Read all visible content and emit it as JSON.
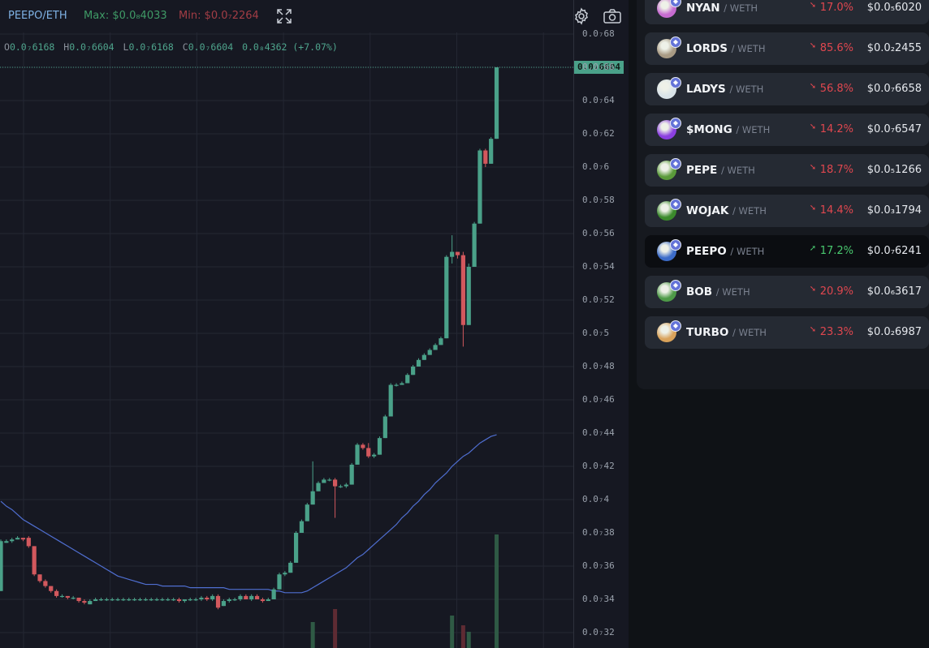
{
  "header": {
    "pair": "PEEPO/ETH",
    "max": "Max: $0.0₈4033",
    "min": "Min: $0.0₇2264"
  },
  "ohlc": {
    "open_key": "O",
    "open": "0.0₇6168",
    "high_key": "H",
    "high": "0.0₇6604",
    "low_key": "L",
    "low": "0.0₇6168",
    "close_key": "C",
    "close": "0.0₇6604",
    "change": "0.0₈4362 (+7.07%)"
  },
  "price_tag": "0.0₇6604",
  "colors": {
    "up": "#4aa189",
    "down": "#d2585d",
    "ma": "#4f6ed0",
    "badge": "#4aa189"
  },
  "chart_data": {
    "type": "candlestick",
    "y_unit": "ETH (scaled ×10⁻⁷)",
    "y_ticks": [
      "0.0₇68",
      "0.0₇66",
      "0.0₇64",
      "0.0₇62",
      "0.0₇6",
      "0.0₇58",
      "0.0₇56",
      "0.0₇54",
      "0.0₇52",
      "0.0₇5",
      "0.0₇48",
      "0.0₇46",
      "0.0₇44",
      "0.0₇42",
      "0.0₇4",
      "0.0₇38",
      "0.0₇36",
      "0.0₇34",
      "0.0₇32"
    ],
    "y_tick_values": [
      0.68,
      0.66,
      0.64,
      0.62,
      0.6,
      0.58,
      0.56,
      0.54,
      0.52,
      0.5,
      0.48,
      0.46,
      0.44,
      0.42,
      0.4,
      0.38,
      0.36,
      0.34,
      0.32
    ],
    "candles": [
      {
        "o": 0.345,
        "h": 0.376,
        "l": 0.345,
        "c": 0.375
      },
      {
        "o": 0.374,
        "h": 0.376,
        "l": 0.374,
        "c": 0.375
      },
      {
        "o": 0.375,
        "h": 0.377,
        "l": 0.374,
        "c": 0.376
      },
      {
        "o": 0.376,
        "h": 0.378,
        "l": 0.376,
        "c": 0.377
      },
      {
        "o": 0.377,
        "h": 0.377,
        "l": 0.375,
        "c": 0.376
      },
      {
        "o": 0.377,
        "h": 0.378,
        "l": 0.371,
        "c": 0.372
      },
      {
        "o": 0.372,
        "h": 0.372,
        "l": 0.354,
        "c": 0.355
      },
      {
        "o": 0.355,
        "h": 0.355,
        "l": 0.35,
        "c": 0.351
      },
      {
        "o": 0.351,
        "h": 0.352,
        "l": 0.347,
        "c": 0.348
      },
      {
        "o": 0.348,
        "h": 0.348,
        "l": 0.344,
        "c": 0.345
      },
      {
        "o": 0.345,
        "h": 0.346,
        "l": 0.341,
        "c": 0.342
      },
      {
        "o": 0.342,
        "h": 0.343,
        "l": 0.341,
        "c": 0.342
      },
      {
        "o": 0.342,
        "h": 0.342,
        "l": 0.34,
        "c": 0.341
      },
      {
        "o": 0.341,
        "h": 0.342,
        "l": 0.34,
        "c": 0.341
      },
      {
        "o": 0.341,
        "h": 0.341,
        "l": 0.338,
        "c": 0.339
      },
      {
        "o": 0.339,
        "h": 0.34,
        "l": 0.337,
        "c": 0.338
      },
      {
        "o": 0.337,
        "h": 0.34,
        "l": 0.337,
        "c": 0.339
      },
      {
        "o": 0.339,
        "h": 0.341,
        "l": 0.339,
        "c": 0.34
      },
      {
        "o": 0.34,
        "h": 0.341,
        "l": 0.339,
        "c": 0.34
      },
      {
        "o": 0.34,
        "h": 0.341,
        "l": 0.339,
        "c": 0.34
      },
      {
        "o": 0.34,
        "h": 0.341,
        "l": 0.339,
        "c": 0.34
      },
      {
        "o": 0.34,
        "h": 0.341,
        "l": 0.339,
        "c": 0.34
      },
      {
        "o": 0.34,
        "h": 0.341,
        "l": 0.339,
        "c": 0.34
      },
      {
        "o": 0.34,
        "h": 0.341,
        "l": 0.339,
        "c": 0.34
      },
      {
        "o": 0.34,
        "h": 0.341,
        "l": 0.339,
        "c": 0.34
      },
      {
        "o": 0.34,
        "h": 0.341,
        "l": 0.339,
        "c": 0.34
      },
      {
        "o": 0.34,
        "h": 0.341,
        "l": 0.339,
        "c": 0.34
      },
      {
        "o": 0.34,
        "h": 0.341,
        "l": 0.339,
        "c": 0.34
      },
      {
        "o": 0.34,
        "h": 0.341,
        "l": 0.339,
        "c": 0.34
      },
      {
        "o": 0.34,
        "h": 0.341,
        "l": 0.339,
        "c": 0.34
      },
      {
        "o": 0.34,
        "h": 0.341,
        "l": 0.339,
        "c": 0.34
      },
      {
        "o": 0.34,
        "h": 0.341,
        "l": 0.339,
        "c": 0.34
      },
      {
        "o": 0.34,
        "h": 0.341,
        "l": 0.338,
        "c": 0.339
      },
      {
        "o": 0.339,
        "h": 0.34,
        "l": 0.338,
        "c": 0.34
      },
      {
        "o": 0.34,
        "h": 0.341,
        "l": 0.339,
        "c": 0.34
      },
      {
        "o": 0.34,
        "h": 0.341,
        "l": 0.339,
        "c": 0.34
      },
      {
        "o": 0.34,
        "h": 0.342,
        "l": 0.339,
        "c": 0.341
      },
      {
        "o": 0.341,
        "h": 0.342,
        "l": 0.339,
        "c": 0.34
      },
      {
        "o": 0.34,
        "h": 0.343,
        "l": 0.339,
        "c": 0.342
      },
      {
        "o": 0.342,
        "h": 0.343,
        "l": 0.334,
        "c": 0.335
      },
      {
        "o": 0.336,
        "h": 0.34,
        "l": 0.336,
        "c": 0.339
      },
      {
        "o": 0.339,
        "h": 0.341,
        "l": 0.338,
        "c": 0.34
      },
      {
        "o": 0.34,
        "h": 0.341,
        "l": 0.339,
        "c": 0.34
      },
      {
        "o": 0.34,
        "h": 0.343,
        "l": 0.339,
        "c": 0.342
      },
      {
        "o": 0.342,
        "h": 0.343,
        "l": 0.34,
        "c": 0.34
      },
      {
        "o": 0.34,
        "h": 0.343,
        "l": 0.339,
        "c": 0.342
      },
      {
        "o": 0.342,
        "h": 0.343,
        "l": 0.34,
        "c": 0.34
      },
      {
        "o": 0.34,
        "h": 0.341,
        "l": 0.338,
        "c": 0.339
      },
      {
        "o": 0.339,
        "h": 0.341,
        "l": 0.339,
        "c": 0.34
      },
      {
        "o": 0.34,
        "h": 0.347,
        "l": 0.34,
        "c": 0.346
      },
      {
        "o": 0.346,
        "h": 0.356,
        "l": 0.346,
        "c": 0.355
      },
      {
        "o": 0.355,
        "h": 0.357,
        "l": 0.354,
        "c": 0.356
      },
      {
        "o": 0.356,
        "h": 0.363,
        "l": 0.356,
        "c": 0.362
      },
      {
        "o": 0.362,
        "h": 0.381,
        "l": 0.362,
        "c": 0.38
      },
      {
        "o": 0.38,
        "h": 0.388,
        "l": 0.38,
        "c": 0.387
      },
      {
        "o": 0.387,
        "h": 0.398,
        "l": 0.387,
        "c": 0.397
      },
      {
        "o": 0.397,
        "h": 0.423,
        "l": 0.397,
        "c": 0.405
      },
      {
        "o": 0.405,
        "h": 0.411,
        "l": 0.405,
        "c": 0.41
      },
      {
        "o": 0.41,
        "h": 0.413,
        "l": 0.41,
        "c": 0.412
      },
      {
        "o": 0.412,
        "h": 0.413,
        "l": 0.411,
        "c": 0.412
      },
      {
        "o": 0.412,
        "h": 0.413,
        "l": 0.389,
        "c": 0.408
      },
      {
        "o": 0.408,
        "h": 0.409,
        "l": 0.407,
        "c": 0.408
      },
      {
        "o": 0.408,
        "h": 0.41,
        "l": 0.407,
        "c": 0.409
      },
      {
        "o": 0.409,
        "h": 0.422,
        "l": 0.409,
        "c": 0.421
      },
      {
        "o": 0.421,
        "h": 0.434,
        "l": 0.421,
        "c": 0.433
      },
      {
        "o": 0.433,
        "h": 0.434,
        "l": 0.43,
        "c": 0.431
      },
      {
        "o": 0.431,
        "h": 0.434,
        "l": 0.425,
        "c": 0.426
      },
      {
        "o": 0.426,
        "h": 0.428,
        "l": 0.425,
        "c": 0.427
      },
      {
        "o": 0.427,
        "h": 0.438,
        "l": 0.427,
        "c": 0.437
      },
      {
        "o": 0.437,
        "h": 0.451,
        "l": 0.437,
        "c": 0.45
      },
      {
        "o": 0.45,
        "h": 0.47,
        "l": 0.45,
        "c": 0.469
      },
      {
        "o": 0.469,
        "h": 0.47,
        "l": 0.468,
        "c": 0.469
      },
      {
        "o": 0.469,
        "h": 0.471,
        "l": 0.469,
        "c": 0.47
      },
      {
        "o": 0.47,
        "h": 0.476,
        "l": 0.47,
        "c": 0.475
      },
      {
        "o": 0.475,
        "h": 0.481,
        "l": 0.475,
        "c": 0.48
      },
      {
        "o": 0.48,
        "h": 0.485,
        "l": 0.48,
        "c": 0.484
      },
      {
        "o": 0.484,
        "h": 0.488,
        "l": 0.484,
        "c": 0.487
      },
      {
        "o": 0.487,
        "h": 0.491,
        "l": 0.487,
        "c": 0.49
      },
      {
        "o": 0.49,
        "h": 0.494,
        "l": 0.49,
        "c": 0.493
      },
      {
        "o": 0.493,
        "h": 0.498,
        "l": 0.493,
        "c": 0.497
      },
      {
        "o": 0.497,
        "h": 0.547,
        "l": 0.497,
        "c": 0.546
      },
      {
        "o": 0.546,
        "h": 0.559,
        "l": 0.542,
        "c": 0.549
      },
      {
        "o": 0.549,
        "h": 0.549,
        "l": 0.545,
        "c": 0.547
      },
      {
        "o": 0.547,
        "h": 0.549,
        "l": 0.492,
        "c": 0.505
      },
      {
        "o": 0.505,
        "h": 0.542,
        "l": 0.505,
        "c": 0.54
      },
      {
        "o": 0.54,
        "h": 0.567,
        "l": 0.54,
        "c": 0.566
      },
      {
        "o": 0.566,
        "h": 0.611,
        "l": 0.566,
        "c": 0.61
      },
      {
        "o": 0.61,
        "h": 0.611,
        "l": 0.6,
        "c": 0.602
      },
      {
        "o": 0.602,
        "h": 0.618,
        "l": 0.602,
        "c": 0.617
      },
      {
        "o": 0.617,
        "h": 0.66,
        "l": 0.617,
        "c": 0.66
      }
    ],
    "moving_average": [
      0.399,
      0.396,
      0.394,
      0.391,
      0.388,
      0.386,
      0.384,
      0.382,
      0.38,
      0.378,
      0.376,
      0.374,
      0.372,
      0.37,
      0.368,
      0.366,
      0.364,
      0.362,
      0.36,
      0.358,
      0.356,
      0.354,
      0.353,
      0.352,
      0.351,
      0.35,
      0.349,
      0.349,
      0.349,
      0.348,
      0.348,
      0.348,
      0.348,
      0.348,
      0.347,
      0.347,
      0.347,
      0.347,
      0.347,
      0.347,
      0.347,
      0.346,
      0.346,
      0.346,
      0.346,
      0.346,
      0.346,
      0.346,
      0.346,
      0.345,
      0.345,
      0.344,
      0.344,
      0.344,
      0.344,
      0.345,
      0.347,
      0.349,
      0.351,
      0.353,
      0.355,
      0.357,
      0.359,
      0.362,
      0.365,
      0.367,
      0.37,
      0.373,
      0.376,
      0.379,
      0.382,
      0.385,
      0.389,
      0.392,
      0.396,
      0.399,
      0.403,
      0.406,
      0.41,
      0.413,
      0.416,
      0.42,
      0.423,
      0.426,
      0.428,
      0.431,
      0.434,
      0.436,
      0.438,
      0.439
    ],
    "volume": [
      {
        "i": 56,
        "v": 0.8,
        "dir": "up"
      },
      {
        "i": 60,
        "v": 1.2,
        "dir": "down"
      },
      {
        "i": 81,
        "v": 1.0,
        "dir": "up"
      },
      {
        "i": 83,
        "v": 0.7,
        "dir": "down"
      },
      {
        "i": 84,
        "v": 0.5,
        "dir": "up"
      },
      {
        "i": 89,
        "v": 3.5,
        "dir": "up"
      }
    ]
  },
  "tokens": [
    {
      "symbol": "NYAN",
      "quote": "/ WETH",
      "change": "17.0%",
      "dir": "down",
      "price": "$0.0₅6020",
      "avatar_color": "#c66bd0"
    },
    {
      "symbol": "LORDS",
      "quote": "/ WETH",
      "change": "85.6%",
      "dir": "down",
      "price": "$0.0₂2455",
      "avatar_color": "#a89a84"
    },
    {
      "symbol": "LADYS",
      "quote": "/ WETH",
      "change": "56.8%",
      "dir": "down",
      "price": "$0.0₇6658",
      "avatar_color": "#d9e3e8"
    },
    {
      "symbol": "$MONG",
      "quote": "/ WETH",
      "change": "14.2%",
      "dir": "down",
      "price": "$0.0₇6547",
      "avatar_color": "#8b3fe0"
    },
    {
      "symbol": "PEPE",
      "quote": "/ WETH",
      "change": "18.7%",
      "dir": "down",
      "price": "$0.0₅1266",
      "avatar_color": "#5a9a3a"
    },
    {
      "symbol": "WOJAK",
      "quote": "/ WETH",
      "change": "14.4%",
      "dir": "down",
      "price": "$0.0₃1794",
      "avatar_color": "#3b8a2c"
    },
    {
      "symbol": "PEEPO",
      "quote": "/ WETH",
      "change": "17.2%",
      "dir": "up",
      "price": "$0.0₇6241",
      "avatar_color": "#3c6cc9"
    },
    {
      "symbol": "BOB",
      "quote": "/ WETH",
      "change": "20.9%",
      "dir": "down",
      "price": "$0.0₆3617",
      "avatar_color": "#4e9a48"
    },
    {
      "symbol": "TURBO",
      "quote": "/ WETH",
      "change": "23.3%",
      "dir": "down",
      "price": "$0.0₂6987",
      "avatar_color": "#d9a25a"
    }
  ]
}
